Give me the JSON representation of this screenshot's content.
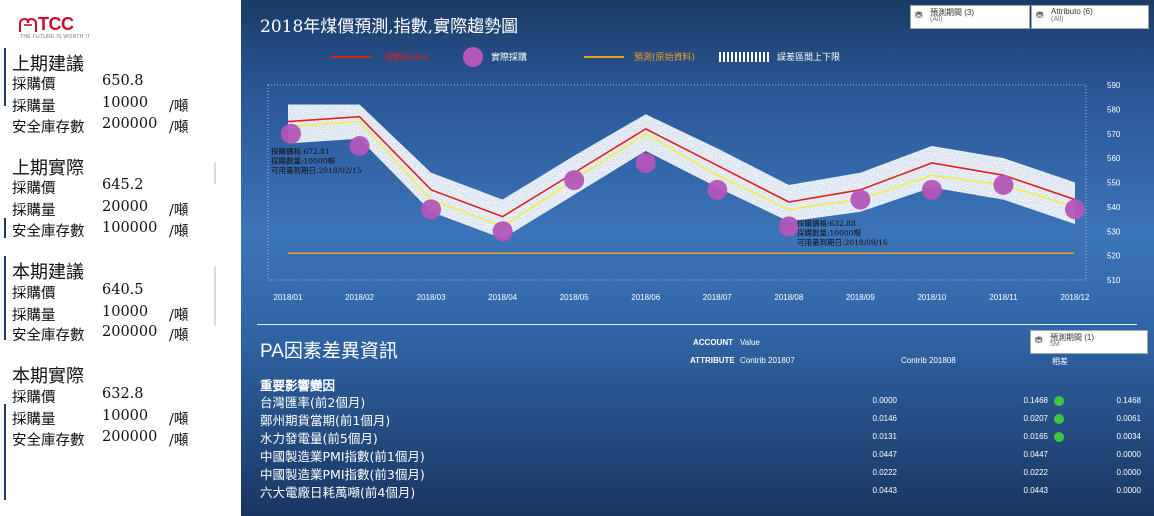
{
  "logo": {
    "name": "TCC",
    "tagline": "THE FUTURE IS WORTH IT"
  },
  "left": {
    "sections": [
      {
        "title": "上期建議",
        "rows": [
          {
            "label": "採購價",
            "value": "650.8",
            "unit": ""
          },
          {
            "label": "採購量",
            "value": "10000",
            "unit": "/噸"
          },
          {
            "label": "安全庫存數",
            "value": "200000",
            "unit": "/噸"
          }
        ]
      },
      {
        "title": "上期實際",
        "rows": [
          {
            "label": "採購價",
            "value": "645.2",
            "unit": ""
          },
          {
            "label": "採購量",
            "value": "20000",
            "unit": "/噸"
          },
          {
            "label": "安全庫存數",
            "value": "100000",
            "unit": "/噸"
          }
        ]
      },
      {
        "title": "本期建議",
        "rows": [
          {
            "label": "採購價",
            "value": "640.5",
            "unit": ""
          },
          {
            "label": "採購量",
            "value": "10000",
            "unit": "/噸"
          },
          {
            "label": "安全庫存數",
            "value": "200000",
            "unit": "/噸"
          }
        ]
      },
      {
        "title": "本期實際",
        "rows": [
          {
            "label": "採購價",
            "value": "632.8",
            "unit": ""
          },
          {
            "label": "採購量",
            "value": "10000",
            "unit": "/噸"
          },
          {
            "label": "安全庫存數",
            "value": "200000",
            "unit": "/噸"
          }
        ]
      }
    ]
  },
  "chart_panel": {
    "title": "2018年煤價預測,指數,實際趨勢圖",
    "filters": [
      {
        "label": "預測期間 (3)",
        "sub": "(All)",
        "icon": "filter-icon"
      },
      {
        "label": "Attributo (6)",
        "sub": "(All)",
        "icon": "filter-icon"
      }
    ],
    "legend": {
      "index": "指數Index",
      "actual": "實際採購",
      "forecast": "預測(原始資料)",
      "band": "誤差區間上下限"
    }
  },
  "chart_data": {
    "type": "line",
    "title": "2018年煤價預測,指數,實際趨勢圖",
    "categories": [
      "2018/01",
      "2018/02",
      "2018/03",
      "2018/04",
      "2018/05",
      "2018/06",
      "2018/07",
      "2018/08",
      "2018/09",
      "2018/10",
      "2018/11",
      "2018/12"
    ],
    "ylim": [
      510,
      590
    ],
    "yticks": [
      510,
      520,
      530,
      540,
      550,
      560,
      570,
      580,
      590
    ],
    "grid": true,
    "series": [
      {
        "name": "指數Index",
        "color": "#e02020",
        "values": [
          575,
          577,
          547,
          536,
          554,
          572,
          557,
          542,
          547,
          558,
          553,
          543
        ]
      },
      {
        "name": "預測(原始資料)",
        "color": "#f0ef4a",
        "values": [
          573,
          575,
          543,
          532,
          551,
          570,
          553,
          539,
          543,
          553,
          549,
          540
        ]
      },
      {
        "name": "實際採購",
        "color": "#b356b8",
        "values": [
          570,
          565,
          539,
          530,
          551,
          558,
          547,
          532,
          543,
          547,
          549,
          539
        ]
      },
      {
        "name": "誤差區間上下限",
        "color": "#ffffff",
        "upper": [
          582,
          582,
          554,
          543,
          561,
          578,
          564,
          549,
          554,
          565,
          560,
          550
        ],
        "lower": [
          566,
          568,
          538,
          527,
          545,
          563,
          548,
          534,
          538,
          548,
          543,
          533
        ]
      }
    ],
    "reference_line": {
      "name": "預測(原始資料)",
      "value": 521,
      "color": "#f0a020"
    },
    "annotations": [
      {
        "x": "2018/01",
        "lines": [
          "採購價格:672.81",
          "採購數量:10000噸",
          "可用量到期日:2018/02/15"
        ]
      },
      {
        "x": "2018/08",
        "lines": [
          "採購價格:632.88",
          "採購數量:10000噸",
          "可用量到期日:2018/09/16"
        ]
      }
    ]
  },
  "pa_panel": {
    "title": "PA因素差異資訊",
    "account_label": "ACCOUNT",
    "account_value": "Value",
    "attribute_label": "ATTRIBUTE",
    "columns": [
      "Contrib 201807",
      "Contrib 201808",
      "相差"
    ],
    "filter": {
      "label": "預測期間 (1)",
      "sub": "5M",
      "icon": "filter-icon"
    },
    "factor_heading": "重要影響變因",
    "factors": [
      {
        "name": "台灣匯率(前2個月)",
        "c1": "0.0000",
        "c2": "0.1468",
        "diff": "0.1468",
        "status": "green"
      },
      {
        "name": "鄭州期貨當期(前1個月)",
        "c1": "0.0146",
        "c2": "0.0207",
        "diff": "0.0061",
        "status": "green"
      },
      {
        "name": "水力發電量(前5個月)",
        "c1": "0.0131",
        "c2": "0.0165",
        "diff": "0.0034",
        "status": "green"
      },
      {
        "name": "中國製造業PMI指數(前1個月)",
        "c1": "0.0447",
        "c2": "0.0447",
        "diff": "0.0000",
        "status": ""
      },
      {
        "name": "中國製造業PMI指數(前3個月)",
        "c1": "0.0222",
        "c2": "0.0222",
        "diff": "0.0000",
        "status": ""
      },
      {
        "name": "六大電廠日耗萬噸(前4個月)",
        "c1": "0.0443",
        "c2": "0.0443",
        "diff": "0.0000",
        "status": ""
      }
    ],
    "colors": {
      "status_green": "#3cc83c"
    }
  }
}
